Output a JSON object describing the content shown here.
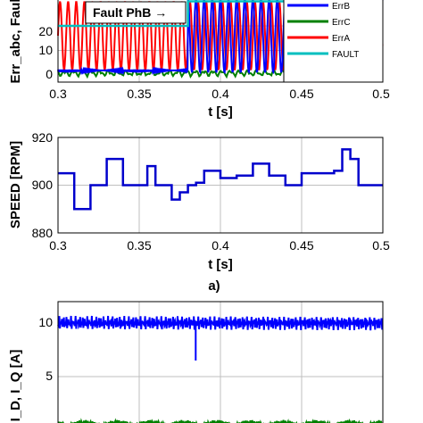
{
  "caption": "a)",
  "chart_data": [
    {
      "type": "line",
      "ylabel": "Err_abc, Faul",
      "xlabel": "t [s]",
      "xlim": [
        0.3,
        0.5
      ],
      "xticks": [
        "0.3",
        "0.35",
        "0.4",
        "0.45",
        "0.5"
      ],
      "yticks": [
        "0",
        "10",
        "20"
      ],
      "ylim_visible": [
        -3,
        33
      ],
      "grid": true,
      "legend_position": "top-right",
      "series": [
        {
          "name": "ErrB",
          "color": "#0000ff"
        },
        {
          "name": "ErrC",
          "color": "#008000"
        },
        {
          "name": "ErrA",
          "color": "#ff0000"
        },
        {
          "name": "FAULT",
          "color": "#00bfbf"
        }
      ],
      "annotation": "Fault PhB →",
      "fault_time": 0.38,
      "fault_level_before": 20,
      "fault_level_after": 30
    },
    {
      "type": "line",
      "ylabel": "SPEED [RPM]",
      "xlabel": "t [s]",
      "xlim": [
        0.3,
        0.5
      ],
      "ylim": [
        880,
        920
      ],
      "xticks": [
        "0.3",
        "0.35",
        "0.4",
        "0.45",
        "0.5"
      ],
      "yticks": [
        "880",
        "900",
        "920"
      ],
      "grid": true,
      "series": [
        {
          "color": "#0000cc",
          "x": [
            0.3,
            0.31,
            0.32,
            0.33,
            0.34,
            0.35,
            0.355,
            0.36,
            0.37,
            0.375,
            0.38,
            0.385,
            0.39,
            0.4,
            0.41,
            0.42,
            0.43,
            0.44,
            0.45,
            0.46,
            0.47,
            0.475,
            0.48,
            0.485,
            0.49,
            0.5
          ],
          "y": [
            905,
            890,
            900,
            911,
            900,
            900,
            908,
            900,
            894,
            897,
            900,
            901,
            906,
            903,
            904,
            909,
            904,
            900,
            905,
            905,
            906,
            915,
            911,
            900,
            900,
            900
          ]
        }
      ]
    },
    {
      "type": "line",
      "ylabel": "I_D, I_Q [A]",
      "xlabel": "",
      "xlim": [
        0.3,
        0.5
      ],
      "ylim_visible": [
        -1,
        12
      ],
      "yticks": [
        "5",
        "10"
      ],
      "grid": true,
      "series": [
        {
          "color": "#0000ff",
          "mean": 10,
          "noise": 0.5,
          "dip_time": 0.385,
          "dip_value": 6.5
        },
        {
          "color": "#008000",
          "mean": 0,
          "noise": 0.4
        }
      ]
    }
  ]
}
